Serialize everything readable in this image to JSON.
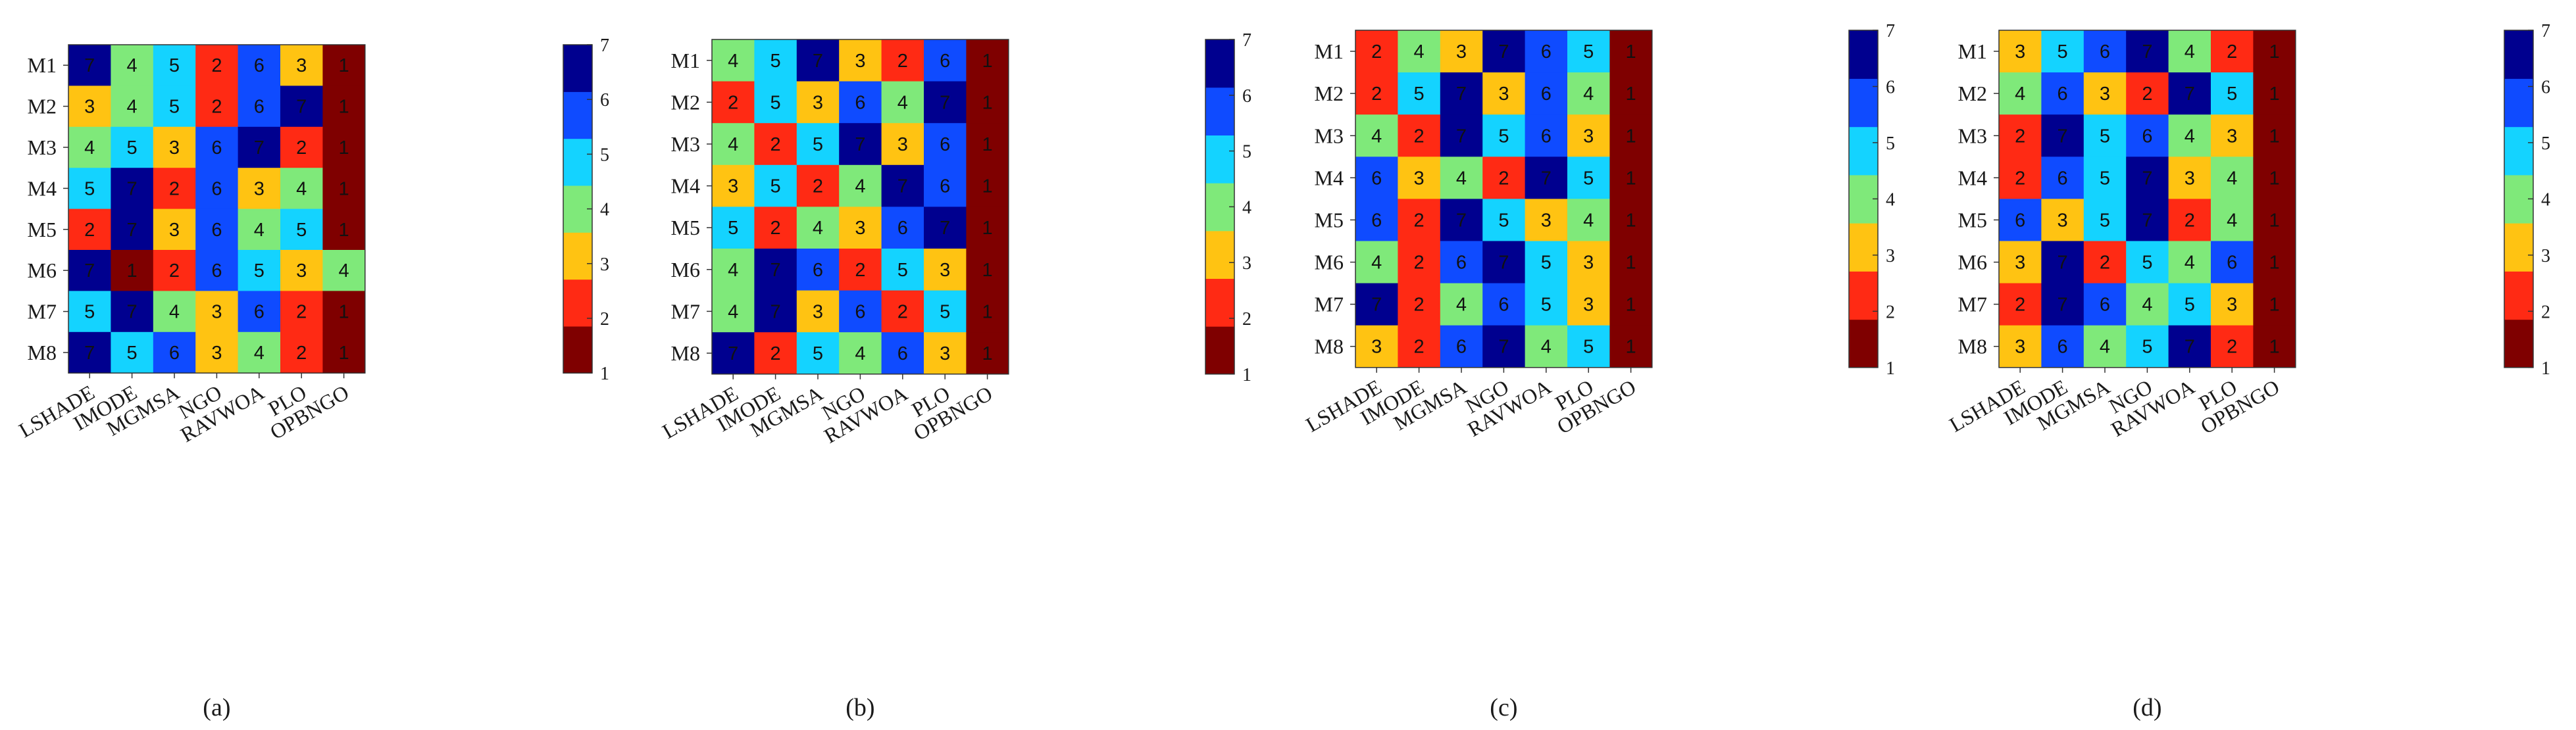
{
  "chart_data": [
    {
      "type": "heatmap",
      "caption": "(a)",
      "rows": [
        "M1",
        "M2",
        "M3",
        "M4",
        "M5",
        "M6",
        "M7",
        "M8"
      ],
      "columns": [
        "LSHADE",
        "IMODE",
        "MGMSA",
        "NGO",
        "RAVWOA",
        "PLO",
        "OPBNGO"
      ],
      "values": [
        [
          7,
          4,
          5,
          2,
          6,
          3,
          1
        ],
        [
          3,
          4,
          5,
          2,
          6,
          7,
          1
        ],
        [
          4,
          5,
          3,
          6,
          7,
          2,
          1
        ],
        [
          5,
          7,
          2,
          6,
          3,
          4,
          1
        ],
        [
          2,
          7,
          3,
          6,
          4,
          5,
          1
        ],
        [
          7,
          1,
          2,
          6,
          5,
          3,
          4
        ],
        [
          5,
          7,
          4,
          3,
          6,
          2,
          1
        ],
        [
          7,
          5,
          6,
          3,
          4,
          2,
          1
        ]
      ],
      "colorbar": {
        "min": 1,
        "max": 7,
        "ticks": [
          "1",
          "2",
          "3",
          "4",
          "5",
          "6",
          "7"
        ]
      }
    },
    {
      "type": "heatmap",
      "caption": "(b)",
      "rows": [
        "M1",
        "M2",
        "M3",
        "M4",
        "M5",
        "M6",
        "M7",
        "M8"
      ],
      "columns": [
        "LSHADE",
        "IMODE",
        "MGMSA",
        "NGO",
        "RAVWOA",
        "PLO",
        "OPBNGO"
      ],
      "values": [
        [
          4,
          5,
          7,
          3,
          2,
          6,
          1
        ],
        [
          2,
          5,
          3,
          6,
          4,
          7,
          1
        ],
        [
          4,
          2,
          5,
          7,
          3,
          6,
          1
        ],
        [
          3,
          5,
          2,
          4,
          7,
          6,
          1
        ],
        [
          5,
          2,
          4,
          3,
          6,
          7,
          1
        ],
        [
          4,
          7,
          6,
          2,
          5,
          3,
          1
        ],
        [
          4,
          7,
          3,
          6,
          2,
          5,
          1
        ],
        [
          7,
          2,
          5,
          4,
          6,
          3,
          1
        ]
      ],
      "colorbar": {
        "min": 1,
        "max": 7,
        "ticks": [
          "1",
          "2",
          "3",
          "4",
          "5",
          "6",
          "7"
        ]
      }
    },
    {
      "type": "heatmap",
      "caption": "(c)",
      "rows": [
        "M1",
        "M2",
        "M3",
        "M4",
        "M5",
        "M6",
        "M7",
        "M8"
      ],
      "columns": [
        "LSHADE",
        "IMODE",
        "MGMSA",
        "NGO",
        "RAVWOA",
        "PLO",
        "OPBNGO"
      ],
      "values": [
        [
          2,
          4,
          3,
          7,
          6,
          5,
          1
        ],
        [
          2,
          5,
          7,
          3,
          6,
          4,
          1
        ],
        [
          4,
          2,
          7,
          5,
          6,
          3,
          1
        ],
        [
          6,
          3,
          4,
          2,
          7,
          5,
          1
        ],
        [
          6,
          2,
          7,
          5,
          3,
          4,
          1
        ],
        [
          4,
          2,
          6,
          7,
          5,
          3,
          1
        ],
        [
          7,
          2,
          4,
          6,
          5,
          3,
          1
        ],
        [
          3,
          2,
          6,
          7,
          4,
          5,
          1
        ]
      ],
      "colorbar": {
        "min": 1,
        "max": 7,
        "ticks": [
          "1",
          "2",
          "3",
          "4",
          "5",
          "6",
          "7"
        ]
      }
    },
    {
      "type": "heatmap",
      "caption": "(d)",
      "rows": [
        "M1",
        "M2",
        "M3",
        "M4",
        "M5",
        "M6",
        "M7",
        "M8"
      ],
      "columns": [
        "LSHADE",
        "IMODE",
        "MGMSA",
        "NGO",
        "RAVWOA",
        "PLO",
        "OPBNGO"
      ],
      "values": [
        [
          3,
          5,
          6,
          7,
          4,
          2,
          1
        ],
        [
          4,
          6,
          3,
          2,
          7,
          5,
          1
        ],
        [
          2,
          7,
          5,
          6,
          4,
          3,
          1
        ],
        [
          2,
          6,
          5,
          7,
          3,
          4,
          1
        ],
        [
          6,
          3,
          5,
          7,
          2,
          4,
          1
        ],
        [
          3,
          7,
          2,
          5,
          4,
          6,
          1
        ],
        [
          2,
          7,
          6,
          4,
          5,
          3,
          1
        ],
        [
          3,
          6,
          4,
          5,
          7,
          2,
          1
        ]
      ],
      "colorbar": {
        "min": 1,
        "max": 7,
        "ticks": [
          "1",
          "2",
          "3",
          "4",
          "5",
          "6",
          "7"
        ]
      }
    }
  ]
}
